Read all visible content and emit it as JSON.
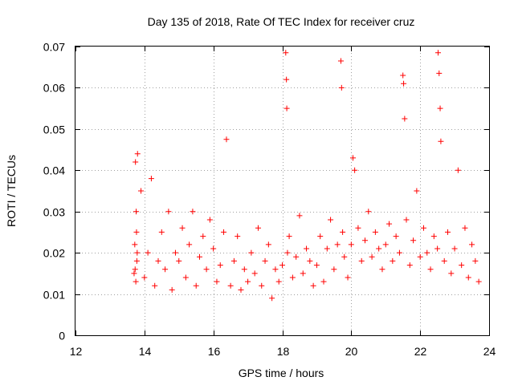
{
  "chart_data": {
    "type": "scatter",
    "title": "Day 135 of 2018, Rate Of TEC Index for receiver cruz",
    "xlabel": "GPS time / hours",
    "ylabel": "ROTI / TECUs",
    "xlim": [
      12,
      24
    ],
    "ylim": [
      0,
      0.07
    ],
    "xticks": [
      "12",
      "14",
      "16",
      "18",
      "20",
      "22",
      "24"
    ],
    "yticks": [
      "0",
      "0.01",
      "0.02",
      "0.03",
      "0.04",
      "0.05",
      "0.06",
      "0.07"
    ],
    "grid": true,
    "marker": "+",
    "color": "#ff0000",
    "series": [
      {
        "name": "ROTI",
        "x": [
          13.7,
          13.72,
          13.74,
          13.76,
          13.78,
          13.8,
          13.75,
          13.77,
          13.79,
          13.73,
          13.9,
          14.0,
          14.1,
          14.2,
          14.3,
          14.4,
          14.5,
          14.6,
          14.7,
          14.8,
          14.9,
          15.0,
          15.1,
          15.2,
          15.3,
          15.4,
          15.5,
          15.6,
          15.7,
          15.8,
          15.9,
          16.0,
          16.1,
          16.2,
          16.3,
          16.38,
          16.5,
          16.6,
          16.7,
          16.8,
          16.9,
          17.0,
          17.1,
          17.2,
          17.3,
          17.4,
          17.5,
          17.6,
          17.7,
          17.8,
          17.9,
          18.0,
          18.1,
          18.12,
          18.13,
          18.15,
          18.2,
          18.3,
          18.4,
          18.5,
          18.6,
          18.7,
          18.8,
          18.9,
          19.0,
          19.1,
          19.2,
          19.3,
          19.4,
          19.5,
          19.6,
          19.7,
          19.72,
          19.75,
          19.8,
          19.9,
          20.0,
          20.05,
          20.1,
          20.2,
          20.3,
          20.4,
          20.5,
          20.6,
          20.7,
          20.8,
          20.9,
          21.0,
          21.1,
          21.2,
          21.3,
          21.4,
          21.5,
          21.52,
          21.55,
          21.6,
          21.7,
          21.8,
          21.9,
          22.0,
          22.1,
          22.2,
          22.3,
          22.4,
          22.5,
          22.52,
          22.55,
          22.58,
          22.6,
          22.7,
          22.8,
          22.9,
          23.0,
          23.1,
          23.2,
          23.3,
          23.4,
          23.5,
          23.6,
          23.7
        ],
        "y": [
          0.015,
          0.022,
          0.042,
          0.03,
          0.018,
          0.044,
          0.013,
          0.025,
          0.02,
          0.016,
          0.035,
          0.014,
          0.02,
          0.038,
          0.012,
          0.018,
          0.025,
          0.016,
          0.03,
          0.011,
          0.02,
          0.018,
          0.026,
          0.014,
          0.022,
          0.03,
          0.012,
          0.019,
          0.024,
          0.016,
          0.028,
          0.021,
          0.013,
          0.017,
          0.025,
          0.0475,
          0.012,
          0.018,
          0.024,
          0.011,
          0.016,
          0.013,
          0.02,
          0.015,
          0.026,
          0.012,
          0.018,
          0.022,
          0.009,
          0.016,
          0.013,
          0.017,
          0.0685,
          0.062,
          0.055,
          0.02,
          0.024,
          0.014,
          0.019,
          0.029,
          0.015,
          0.021,
          0.018,
          0.012,
          0.017,
          0.024,
          0.013,
          0.021,
          0.028,
          0.016,
          0.022,
          0.0665,
          0.06,
          0.025,
          0.019,
          0.014,
          0.022,
          0.043,
          0.04,
          0.026,
          0.018,
          0.023,
          0.03,
          0.019,
          0.025,
          0.021,
          0.016,
          0.022,
          0.027,
          0.018,
          0.024,
          0.02,
          0.063,
          0.061,
          0.0525,
          0.028,
          0.017,
          0.023,
          0.035,
          0.019,
          0.026,
          0.02,
          0.016,
          0.024,
          0.021,
          0.0685,
          0.0635,
          0.055,
          0.047,
          0.018,
          0.025,
          0.015,
          0.021,
          0.04,
          0.017,
          0.026,
          0.014,
          0.022,
          0.018,
          0.013
        ]
      }
    ]
  }
}
